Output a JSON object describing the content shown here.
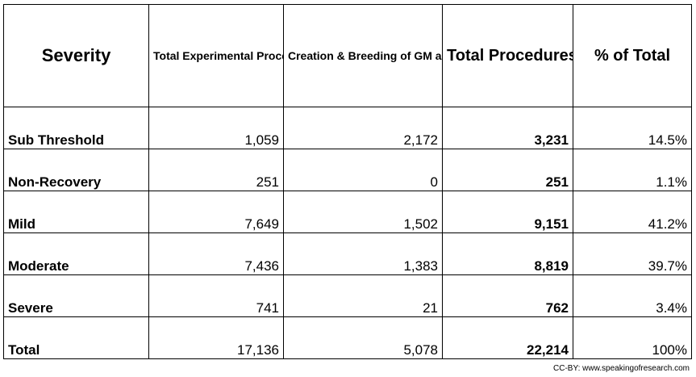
{
  "chart_data": {
    "type": "table",
    "columns": [
      "Severity",
      "Total Experimental Procedures",
      "Creation & Breeding of GM animals not used in experimental procedures",
      "Total Procedures",
      "% of Total"
    ],
    "rows": [
      {
        "severity": "Sub Threshold",
        "experimental": "1,059",
        "gm_breeding": "2,172",
        "total": "3,231",
        "percent": "14.5%"
      },
      {
        "severity": "Non-Recovery",
        "experimental": "251",
        "gm_breeding": "0",
        "total": "251",
        "percent": "1.1%"
      },
      {
        "severity": "Mild",
        "experimental": "7,649",
        "gm_breeding": "1,502",
        "total": "9,151",
        "percent": "41.2%"
      },
      {
        "severity": "Moderate",
        "experimental": "7,436",
        "gm_breeding": "1,383",
        "total": "8,819",
        "percent": "39.7%"
      },
      {
        "severity": "Severe",
        "experimental": "741",
        "gm_breeding": "21",
        "total": "762",
        "percent": "3.4%"
      },
      {
        "severity": "Total",
        "experimental": "17,136",
        "gm_breeding": "5,078",
        "total": "22,214",
        "percent": "100%"
      }
    ]
  },
  "credit": "CC-BY: www.speakingofresearch.com"
}
